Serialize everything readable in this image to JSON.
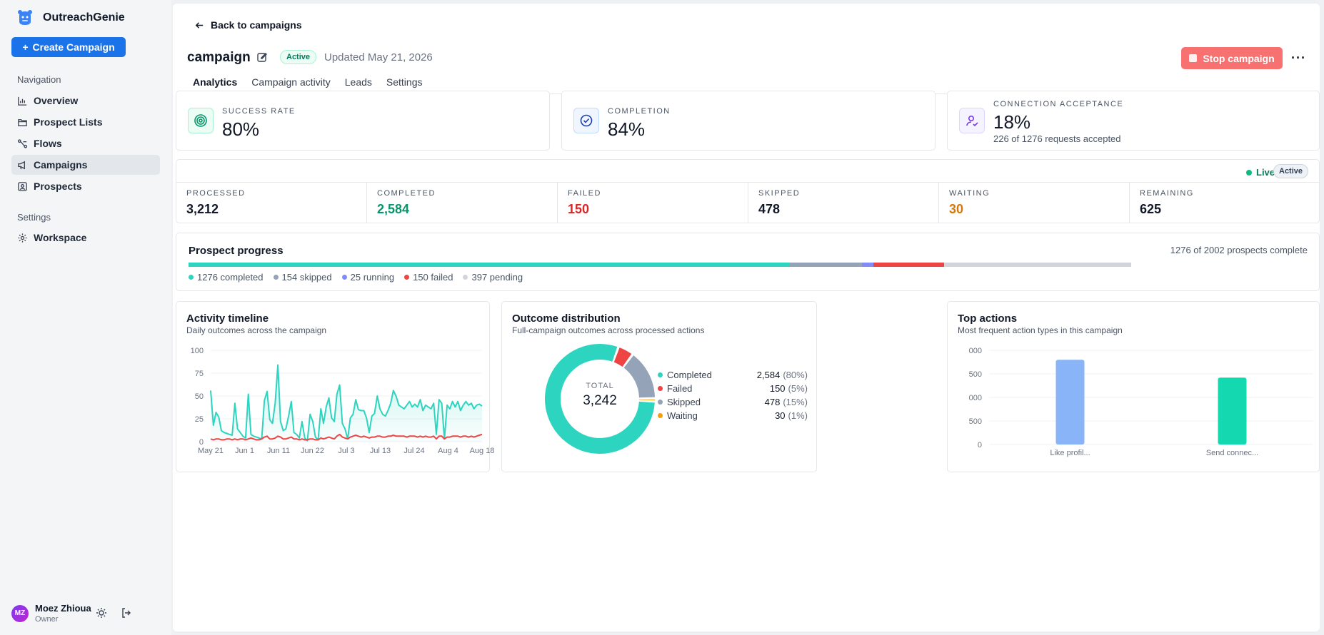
{
  "app": {
    "name": "OutreachGenie"
  },
  "sidebar": {
    "create_label": "Create Campaign",
    "nav_label": "Navigation",
    "items": [
      {
        "label": "Overview",
        "icon": "bar-chart-icon"
      },
      {
        "label": "Prospect Lists",
        "icon": "folder-icon"
      },
      {
        "label": "Flows",
        "icon": "flow-icon"
      },
      {
        "label": "Campaigns",
        "icon": "megaphone-icon"
      },
      {
        "label": "Prospects",
        "icon": "contact-icon"
      }
    ],
    "settings_label": "Settings",
    "settings_items": [
      {
        "label": "Workspace",
        "icon": "gear-icon"
      }
    ],
    "user": {
      "initials": "MZ",
      "name": "Moez Zhioua",
      "role": "Owner"
    }
  },
  "header": {
    "back_label": "Back to campaigns",
    "title": "campaign",
    "status": "Active",
    "updated": "Updated May 21, 2026",
    "stop_label": "Stop campaign",
    "more_label": "···"
  },
  "tabs": [
    {
      "label": "Analytics",
      "active": true
    },
    {
      "label": "Campaign activity",
      "active": false
    },
    {
      "label": "Leads",
      "active": false
    },
    {
      "label": "Settings",
      "active": false
    }
  ],
  "kpis": [
    {
      "label": "SUCCESS RATE",
      "value": "80%",
      "sub": "",
      "color": "#059669",
      "bg": "#ecfdf5"
    },
    {
      "label": "COMPLETION",
      "value": "84%",
      "sub": "",
      "color": "#2563eb",
      "bg": "#eff6ff"
    },
    {
      "label": "CONNECTION ACCEPTANCE",
      "value": "18%",
      "sub": "226 of 1276 requests accepted",
      "color": "#7c3aed",
      "bg": "#f5f3ff"
    }
  ],
  "stats": {
    "live_label": "Live",
    "badge": "Active",
    "items": [
      {
        "label": "PROCESSED",
        "value": "3,212",
        "color": "#111827"
      },
      {
        "label": "COMPLETED",
        "value": "2,584",
        "color": "#059669"
      },
      {
        "label": "FAILED",
        "value": "150",
        "color": "#dc2626"
      },
      {
        "label": "SKIPPED",
        "value": "478",
        "color": "#111827"
      },
      {
        "label": "WAITING",
        "value": "30",
        "color": "#d97706"
      },
      {
        "label": "REMAINING",
        "value": "625",
        "color": "#111827"
      }
    ]
  },
  "progress": {
    "title": "Prospect progress",
    "summary": "1276 of 2002 prospects complete",
    "segments": [
      {
        "label": "1276 completed",
        "count": 1276,
        "color": "#2dd4bf"
      },
      {
        "label": "154 skipped",
        "count": 154,
        "color": "#94a3b8"
      },
      {
        "label": "25 running",
        "count": 25,
        "color": "#818cf8"
      },
      {
        "label": "150 failed",
        "count": 150,
        "color": "#ef4444"
      },
      {
        "label": "397 pending",
        "count": 397,
        "color": "#d1d5db"
      }
    ]
  },
  "timeline": {
    "title": "Activity timeline",
    "subtitle": "Daily outcomes across the campaign"
  },
  "outcome": {
    "title": "Outcome distribution",
    "subtitle": "Full-campaign outcomes across processed actions",
    "total_label": "TOTAL",
    "total_value": "3,242",
    "items": [
      {
        "label": "Completed",
        "value": "2,584",
        "pct": "(80%)",
        "color": "#2dd4bf"
      },
      {
        "label": "Failed",
        "value": "150",
        "pct": "(5%)",
        "color": "#ef4444"
      },
      {
        "label": "Skipped",
        "value": "478",
        "pct": "(15%)",
        "color": "#94a3b8"
      },
      {
        "label": "Waiting",
        "value": "30",
        "pct": "(1%)",
        "color": "#f59e0b"
      }
    ]
  },
  "top_actions": {
    "title": "Top actions",
    "subtitle": "Most frequent action types in this campaign"
  },
  "chart_data": [
    {
      "type": "line",
      "title": "Activity timeline",
      "ylim": [
        0,
        100
      ],
      "yticks": [
        "0",
        "25",
        "50",
        "75",
        "100"
      ],
      "xticks": [
        "May 21",
        "Jun 1",
        "Jun 11",
        "Jun 22",
        "Jul 3",
        "Jul 13",
        "Jul 24",
        "Aug 4",
        "Aug 18"
      ],
      "series": [
        {
          "color": "#2dd4bf",
          "values": [
            56,
            18,
            32,
            27,
            12,
            10,
            9,
            8,
            7,
            42,
            14,
            10,
            6,
            4,
            52,
            8,
            6,
            5,
            4,
            3,
            45,
            55,
            24,
            20,
            42,
            84,
            22,
            12,
            14,
            28,
            44,
            10,
            8,
            4,
            22,
            4,
            1,
            30,
            22,
            5,
            2,
            36,
            20,
            38,
            48,
            26,
            22,
            52,
            62,
            20,
            14,
            3,
            26,
            30,
            46,
            35,
            34,
            34,
            26,
            10,
            28,
            31,
            50,
            36,
            30,
            28,
            34,
            42,
            56,
            50,
            40,
            38,
            36,
            40,
            44,
            38,
            41,
            38,
            46,
            34,
            40,
            38,
            36,
            42,
            8,
            46,
            42,
            3,
            40,
            36,
            44,
            38,
            44,
            34,
            40,
            44,
            40,
            42,
            36,
            40,
            41,
            39
          ]
        },
        {
          "color": "#ef4444",
          "values": [
            3,
            2,
            3,
            3,
            2,
            2,
            3,
            3,
            2,
            3,
            2,
            3,
            3,
            2,
            3,
            4,
            3,
            2,
            2,
            3,
            5,
            6,
            3,
            3,
            4,
            6,
            5,
            3,
            3,
            4,
            5,
            3,
            3,
            2,
            3,
            2,
            2,
            3,
            3,
            2,
            2,
            4,
            3,
            4,
            5,
            4,
            3,
            6,
            8,
            5,
            4,
            3,
            5,
            6,
            7,
            6,
            5,
            6,
            5,
            4,
            5,
            5,
            6,
            6,
            5,
            5,
            6,
            6,
            7,
            6,
            6,
            6,
            6,
            5,
            6,
            6,
            6,
            5,
            6,
            5,
            6,
            5,
            5,
            6,
            3,
            6,
            6,
            3,
            5,
            5,
            6,
            6,
            6,
            5,
            6,
            6,
            5,
            6,
            5,
            6,
            7,
            8
          ]
        }
      ]
    },
    {
      "type": "pie",
      "title": "Outcome distribution",
      "categories": [
        "Completed",
        "Failed",
        "Skipped",
        "Waiting"
      ],
      "values": [
        2584,
        150,
        478,
        30
      ]
    },
    {
      "type": "bar",
      "title": "Top actions",
      "categories": [
        "Like profil...",
        "Send connec..."
      ],
      "values": [
        1800,
        1420
      ],
      "ylim": [
        0,
        2000
      ],
      "yticks": [
        "0",
        "500",
        "000",
        "500",
        "000"
      ],
      "colors": [
        "#8ab4f8",
        "#14d9b0"
      ]
    }
  ]
}
